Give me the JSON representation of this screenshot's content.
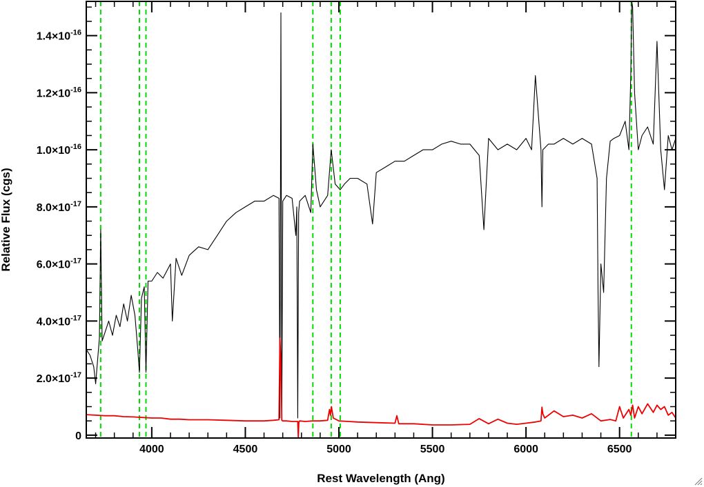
{
  "chart_data": {
    "type": "line",
    "title": "",
    "xlabel": "Rest Wavelength (Ang)",
    "ylabel": "Relative Flux (cgs)",
    "xlim": [
      3650,
      6800
    ],
    "ylim": [
      -1e-18,
      1.52e-16
    ],
    "grid": false,
    "x_ticks": [
      {
        "value": 4000,
        "label": "4000"
      },
      {
        "value": 4500,
        "label": "4500"
      },
      {
        "value": 5000,
        "label": "5000"
      },
      {
        "value": 5500,
        "label": "5500"
      },
      {
        "value": 6000,
        "label": "6000"
      },
      {
        "value": 6500,
        "label": "6500"
      }
    ],
    "y_ticks": [
      {
        "value": 0,
        "mantissa": "0",
        "exponent": ""
      },
      {
        "value": 2e-17,
        "mantissa": "2.0×10",
        "exponent": "-17"
      },
      {
        "value": 4e-17,
        "mantissa": "4.0×10",
        "exponent": "-17"
      },
      {
        "value": 6e-17,
        "mantissa": "6.0×10",
        "exponent": "-17"
      },
      {
        "value": 8e-17,
        "mantissa": "8.0×10",
        "exponent": "-17"
      },
      {
        "value": 1e-16,
        "mantissa": "1.0×10",
        "exponent": "-16"
      },
      {
        "value": 1.2e-16,
        "mantissa": "1.2×10",
        "exponent": "-16"
      },
      {
        "value": 1.4e-16,
        "mantissa": "1.4×10",
        "exponent": "-16"
      }
    ],
    "reference_lines": {
      "color": "#00dd00",
      "style": "dashed",
      "x": [
        3727,
        3934,
        3969,
        4861,
        4959,
        5007,
        6563
      ]
    },
    "series": [
      {
        "color": "#000000",
        "x": [
          3650,
          3670,
          3690,
          3700,
          3710,
          3720,
          3727,
          3735,
          3750,
          3770,
          3790,
          3810,
          3830,
          3850,
          3870,
          3890,
          3910,
          3925,
          3934,
          3945,
          3960,
          3969,
          3980,
          4000,
          4030,
          4060,
          4100,
          4110,
          4130,
          4160,
          4200,
          4250,
          4300,
          4350,
          4400,
          4450,
          4500,
          4550,
          4600,
          4650,
          4680,
          4685,
          4690,
          4695,
          4700,
          4720,
          4750,
          4770,
          4775,
          4780,
          4785,
          4790,
          4820,
          4850,
          4861,
          4880,
          4900,
          4940,
          4959,
          4980,
          5007,
          5030,
          5060,
          5100,
          5150,
          5180,
          5200,
          5250,
          5300,
          5350,
          5400,
          5450,
          5500,
          5550,
          5600,
          5650,
          5700,
          5750,
          5775,
          5800,
          5850,
          5900,
          5950,
          6000,
          6030,
          6050,
          6080,
          6085,
          6090,
          6120,
          6150,
          6200,
          6250,
          6300,
          6350,
          6380,
          6385,
          6390,
          6400,
          6415,
          6430,
          6450,
          6470,
          6500,
          6530,
          6550,
          6560,
          6565,
          6570,
          6580,
          6600,
          6620,
          6650,
          6680,
          6700,
          6720,
          6740,
          6760,
          6780,
          6800
        ],
        "y": [
          3e-17,
          2.8e-17,
          2.4e-17,
          1.8e-17,
          2.6e-17,
          3.4e-17,
          7.2e-17,
          3.3e-17,
          3.6e-17,
          4e-17,
          3.5e-17,
          4.2e-17,
          3.8e-17,
          4.6e-17,
          4e-17,
          4.9e-17,
          4.2e-17,
          3e-17,
          2.2e-17,
          4.8e-17,
          5.2e-17,
          2.2e-17,
          5.4e-17,
          5.4e-17,
          5.7e-17,
          5.5e-17,
          6e-17,
          4e-17,
          6.2e-17,
          5.6e-17,
          6.3e-17,
          6.6e-17,
          6.5e-17,
          7e-17,
          7.5e-17,
          7.8e-17,
          8e-17,
          8.2e-17,
          8.2e-17,
          8.4e-17,
          8.3e-17,
          6e-18,
          1.48e-16,
          6e-18,
          8.2e-17,
          8.4e-17,
          8.3e-17,
          7e-17,
          8e-17,
          6e-18,
          7.8e-17,
          8.2e-17,
          8.4e-17,
          7.8e-17,
          1.02e-16,
          8.6e-17,
          8e-17,
          8.4e-17,
          1e-16,
          8.8e-17,
          8.6e-17,
          8.8e-17,
          9e-17,
          9e-17,
          8.8e-17,
          7.4e-17,
          9.2e-17,
          9.4e-17,
          9.6e-17,
          9.6e-17,
          9.8e-17,
          1e-16,
          1e-16,
          1.02e-16,
          1.03e-16,
          1.02e-16,
          1.02e-16,
          9.8e-17,
          7.2e-17,
          1.04e-16,
          1e-16,
          1.02e-16,
          1e-16,
          1.04e-16,
          1e-16,
          1.26e-16,
          1e-16,
          8e-17,
          1e-16,
          1.02e-16,
          1.02e-16,
          1.04e-16,
          1.02e-16,
          1.04e-16,
          1.02e-16,
          9e-17,
          5e-17,
          2.4e-17,
          6e-17,
          5e-17,
          9e-17,
          1.03e-16,
          1.04e-16,
          1.05e-16,
          1.1e-16,
          1e-16,
          1.26e-16,
          1.52e-16,
          1.5e-16,
          1.2e-16,
          1e-16,
          1.05e-16,
          1.08e-16,
          1.02e-16,
          1.38e-16,
          1e-16,
          8.6e-17,
          1.05e-16,
          1e-16,
          1.04e-16
        ]
      },
      {
        "color": "#ee0000",
        "x": [
          3650,
          3700,
          3750,
          3800,
          3850,
          3900,
          3950,
          4000,
          4050,
          4100,
          4150,
          4200,
          4300,
          4400,
          4500,
          4600,
          4650,
          4680,
          4685,
          4690,
          4695,
          4700,
          4720,
          4750,
          4770,
          4780,
          4783,
          4786,
          4790,
          4820,
          4860,
          4900,
          4940,
          4950,
          4955,
          4960,
          4970,
          5000,
          5050,
          5100,
          5200,
          5300,
          5310,
          5320,
          5400,
          5500,
          5600,
          5700,
          5750,
          5800,
          5850,
          5900,
          5950,
          6000,
          6050,
          6080,
          6085,
          6090,
          6100,
          6150,
          6200,
          6250,
          6300,
          6350,
          6400,
          6450,
          6480,
          6500,
          6520,
          6550,
          6560,
          6570,
          6580,
          6600,
          6620,
          6650,
          6680,
          6700,
          6720,
          6740,
          6760,
          6780,
          6800
        ],
        "y": [
          7.2e-18,
          7e-18,
          6.8e-18,
          6.8e-18,
          6.5e-18,
          6.4e-18,
          6.2e-18,
          6e-18,
          6e-18,
          5.6e-18,
          5.6e-18,
          5.4e-18,
          5.4e-18,
          5.2e-18,
          5e-18,
          5e-18,
          5.2e-18,
          5.4e-18,
          3.4e-17,
          2.6e-17,
          5.2e-18,
          5e-18,
          5e-18,
          4.8e-18,
          4.8e-18,
          4.8e-18,
          -1e-18,
          4.6e-18,
          5e-18,
          4.8e-18,
          5e-18,
          5e-18,
          5.2e-18,
          9e-18,
          7e-18,
          1e-17,
          6e-18,
          5e-18,
          4.8e-18,
          4.6e-18,
          4.4e-18,
          4.2e-18,
          6.8e-18,
          4e-18,
          4e-18,
          3.6e-18,
          3.6e-18,
          3.8e-18,
          5.8e-18,
          4e-18,
          5.6e-18,
          4.2e-18,
          3.8e-18,
          4.2e-18,
          4.6e-18,
          5e-18,
          9.8e-18,
          7.5e-18,
          6e-18,
          8.5e-18,
          6.5e-18,
          7e-18,
          6e-18,
          7.5e-18,
          5e-18,
          5.5e-18,
          5e-18,
          1e-17,
          6e-18,
          9e-18,
          7e-18,
          1.05e-17,
          6e-18,
          1e-17,
          7.5e-18,
          1.1e-17,
          8e-18,
          1.05e-17,
          9e-18,
          1e-17,
          7e-18,
          8e-18,
          6e-18
        ]
      }
    ]
  },
  "window": {
    "resize_grip_icon": "resize-grip-icon"
  }
}
